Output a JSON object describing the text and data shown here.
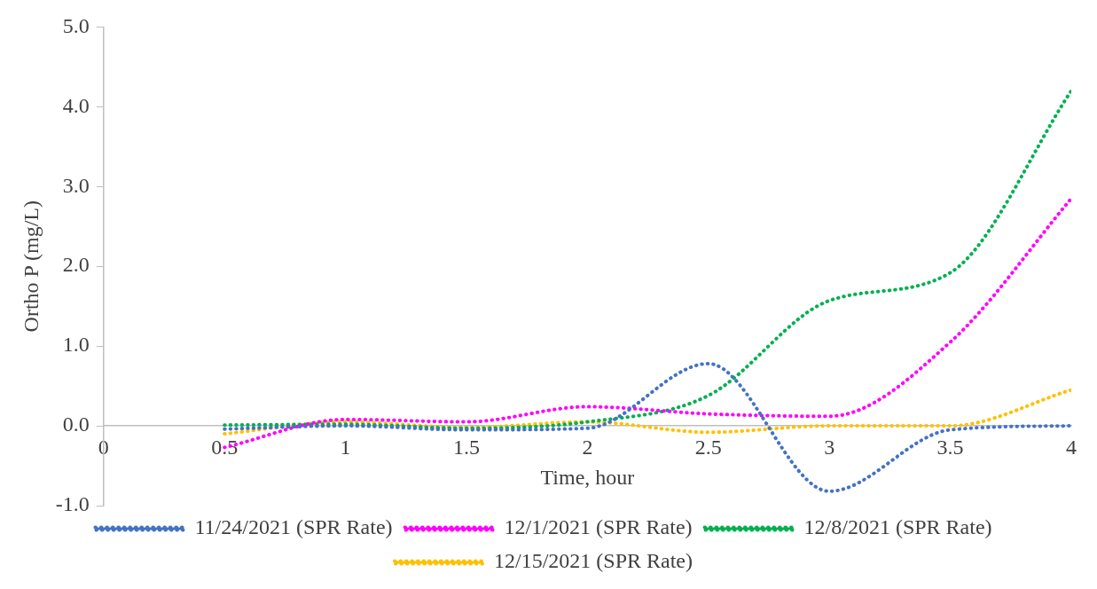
{
  "chart_data": {
    "type": "line",
    "xlabel": "Time, hour",
    "ylabel": "Ortho P (mg/L)",
    "x": [
      0.5,
      1,
      1.5,
      2,
      2.5,
      3,
      3.5,
      4
    ],
    "series": [
      {
        "name": "11/24/2021 (SPR Rate)",
        "color": "#4472c4",
        "values": [
          -0.04,
          0.0,
          -0.05,
          -0.03,
          0.78,
          -0.82,
          -0.05,
          0.0
        ]
      },
      {
        "name": "12/1/2021 (SPR Rate)",
        "color": "#ff00ff",
        "values": [
          -0.27,
          0.08,
          0.05,
          0.24,
          0.15,
          0.12,
          1.05,
          2.85
        ]
      },
      {
        "name": "12/8/2021 (SPR Rate)",
        "color": "#00b050",
        "values": [
          0.01,
          0.02,
          -0.03,
          0.05,
          0.38,
          1.57,
          1.92,
          4.2
        ]
      },
      {
        "name": "12/15/2021 (SPR Rate)",
        "color": "#ffc000",
        "values": [
          -0.1,
          0.05,
          -0.02,
          0.05,
          -0.08,
          0.0,
          0.0,
          0.45
        ]
      }
    ],
    "xlim": [
      0,
      4
    ],
    "xticks": [
      0,
      0.5,
      1,
      1.5,
      2,
      2.5,
      3,
      3.5,
      4
    ],
    "ylim": [
      -1,
      5
    ],
    "yticks": [
      {
        "value": -1,
        "label": "-1.0"
      },
      {
        "value": 0,
        "label": "0.0"
      },
      {
        "value": 1,
        "label": "1.0"
      },
      {
        "value": 2,
        "label": "2.0"
      },
      {
        "value": 3,
        "label": "3.0"
      },
      {
        "value": 4,
        "label": "4.0"
      },
      {
        "value": 5,
        "label": "5.0"
      }
    ],
    "grid": false,
    "legend": "bottom",
    "marker": "none",
    "line_style": "dotted"
  }
}
